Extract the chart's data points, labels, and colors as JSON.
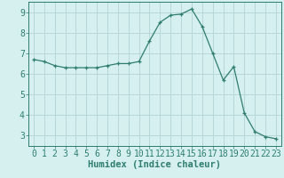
{
  "xlabel": "Humidex (Indice chaleur)",
  "x": [
    0,
    1,
    2,
    3,
    4,
    5,
    6,
    7,
    8,
    9,
    10,
    11,
    12,
    13,
    14,
    15,
    16,
    17,
    18,
    19,
    20,
    21,
    22,
    23
  ],
  "y": [
    6.7,
    6.6,
    6.4,
    6.3,
    6.3,
    6.3,
    6.3,
    6.4,
    6.5,
    6.5,
    6.6,
    7.6,
    8.5,
    8.85,
    8.9,
    9.15,
    8.3,
    7.0,
    5.7,
    6.35,
    4.1,
    3.2,
    2.95,
    2.85
  ],
  "line_color": "#2e7d6e",
  "marker": "+",
  "bg_color": "#d6f0ef",
  "grid_color": "#b8d8d8",
  "axis_color": "#2e7d6e",
  "tick_color": "#2e7d6e",
  "ylim": [
    2.5,
    9.5
  ],
  "xlim": [
    -0.5,
    23.5
  ],
  "yticks": [
    3,
    4,
    5,
    6,
    7,
    8,
    9
  ],
  "xticks": [
    0,
    1,
    2,
    3,
    4,
    5,
    6,
    7,
    8,
    9,
    10,
    11,
    12,
    13,
    14,
    15,
    16,
    17,
    18,
    19,
    20,
    21,
    22,
    23
  ],
  "xlabel_fontsize": 7.5,
  "tick_fontsize": 7
}
